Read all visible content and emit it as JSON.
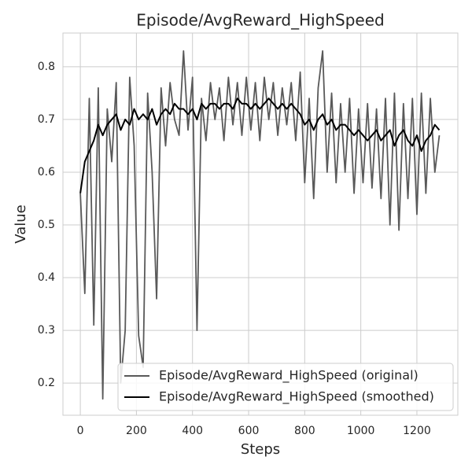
{
  "chart_data": {
    "type": "line",
    "title": "Episode/AvgReward_HighSpeed",
    "x_label": "Steps",
    "y_label": "Value",
    "x": [
      0,
      16,
      32,
      48,
      64,
      80,
      96,
      112,
      128,
      144,
      160,
      176,
      192,
      208,
      224,
      240,
      256,
      272,
      288,
      304,
      320,
      336,
      352,
      368,
      384,
      400,
      416,
      432,
      448,
      464,
      480,
      496,
      512,
      528,
      544,
      560,
      576,
      592,
      608,
      624,
      640,
      656,
      672,
      688,
      704,
      720,
      736,
      752,
      768,
      784,
      800,
      816,
      832,
      848,
      864,
      880,
      896,
      912,
      928,
      944,
      960,
      976,
      992,
      1008,
      1024,
      1040,
      1056,
      1072,
      1088,
      1104,
      1120,
      1136,
      1152,
      1168,
      1184,
      1200,
      1216,
      1232,
      1248,
      1264,
      1280
    ],
    "series": [
      {
        "name": "Episode/AvgReward_HighSpeed (original)",
        "color": "#595959",
        "values": [
          0.56,
          0.37,
          0.74,
          0.31,
          0.76,
          0.17,
          0.72,
          0.62,
          0.77,
          0.2,
          0.3,
          0.78,
          0.65,
          0.29,
          0.23,
          0.75,
          0.6,
          0.36,
          0.76,
          0.65,
          0.77,
          0.7,
          0.67,
          0.83,
          0.68,
          0.78,
          0.3,
          0.74,
          0.66,
          0.77,
          0.7,
          0.76,
          0.66,
          0.78,
          0.69,
          0.77,
          0.67,
          0.78,
          0.68,
          0.77,
          0.66,
          0.78,
          0.7,
          0.77,
          0.67,
          0.76,
          0.69,
          0.77,
          0.66,
          0.79,
          0.58,
          0.74,
          0.55,
          0.76,
          0.83,
          0.6,
          0.75,
          0.58,
          0.73,
          0.6,
          0.74,
          0.56,
          0.72,
          0.58,
          0.73,
          0.57,
          0.72,
          0.55,
          0.74,
          0.5,
          0.75,
          0.49,
          0.73,
          0.55,
          0.74,
          0.52,
          0.75,
          0.56,
          0.74,
          0.6,
          0.67
        ]
      },
      {
        "name": "Episode/AvgReward_HighSpeed (smoothed)",
        "color": "#000000",
        "values": [
          0.56,
          0.62,
          0.64,
          0.66,
          0.69,
          0.67,
          0.69,
          0.7,
          0.71,
          0.68,
          0.7,
          0.69,
          0.72,
          0.7,
          0.71,
          0.7,
          0.72,
          0.69,
          0.71,
          0.72,
          0.71,
          0.73,
          0.72,
          0.72,
          0.71,
          0.72,
          0.7,
          0.73,
          0.72,
          0.73,
          0.73,
          0.72,
          0.73,
          0.73,
          0.72,
          0.74,
          0.73,
          0.73,
          0.72,
          0.73,
          0.72,
          0.73,
          0.74,
          0.73,
          0.72,
          0.73,
          0.72,
          0.73,
          0.72,
          0.71,
          0.69,
          0.7,
          0.68,
          0.7,
          0.71,
          0.69,
          0.7,
          0.68,
          0.69,
          0.69,
          0.68,
          0.67,
          0.68,
          0.67,
          0.66,
          0.67,
          0.68,
          0.66,
          0.67,
          0.68,
          0.65,
          0.67,
          0.68,
          0.66,
          0.65,
          0.67,
          0.64,
          0.66,
          0.67,
          0.69,
          0.68
        ]
      }
    ],
    "xlim": [
      -62,
      1346
    ],
    "xticks": [
      0,
      200,
      400,
      600,
      800,
      1000,
      1200
    ],
    "ylim": [
      0.139,
      0.864
    ],
    "yticks": [
      0.2,
      0.3,
      0.4,
      0.5,
      0.6,
      0.7,
      0.8
    ],
    "grid": true,
    "legend": "lower right"
  }
}
